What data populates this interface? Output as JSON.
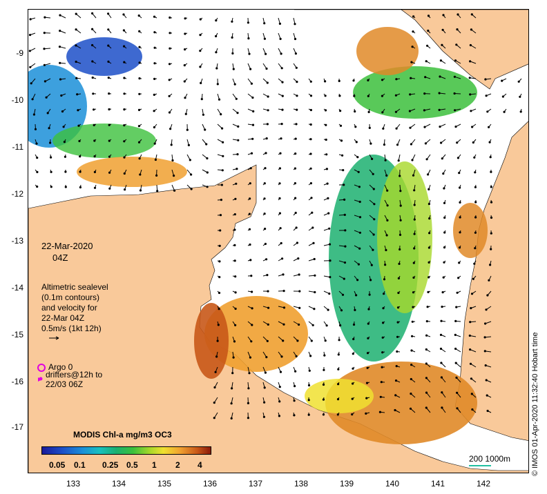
{
  "map": {
    "date": "22-Mar-2020",
    "time": "04Z",
    "legend_lines": [
      "Altimetric sealevel",
      "(0.1m contours)",
      "and velocity for",
      "22-Mar 04Z",
      "0.5m/s (1kt 12h)"
    ],
    "argo_label": "Argo 0",
    "drifter_lines": [
      "drifters@12h to",
      "22/03 06Z"
    ],
    "credit": "© IMOS 01-Apr-2020 11:32:40 Hobart time",
    "colorbar_title": "MODIS Chl-a mg/m3 OC3",
    "colorbar_labels": [
      "0.05",
      "0.1",
      "0.25",
      "0.5",
      "1",
      "2",
      "4"
    ],
    "scale_label": "200  1000m",
    "lat_ticks": [
      "-9",
      "-10",
      "-11",
      "-12",
      "-13",
      "-14",
      "-15",
      "-16",
      "-17"
    ],
    "lon_ticks": [
      "133",
      "134",
      "135",
      "136",
      "137",
      "138",
      "139",
      "140",
      "141",
      "142"
    ],
    "colors": {
      "land": "#f9c99a",
      "argo_marker": "#e000e0",
      "drifter_marker": "#e000e0",
      "scale_bar": "#20c0a0"
    }
  }
}
